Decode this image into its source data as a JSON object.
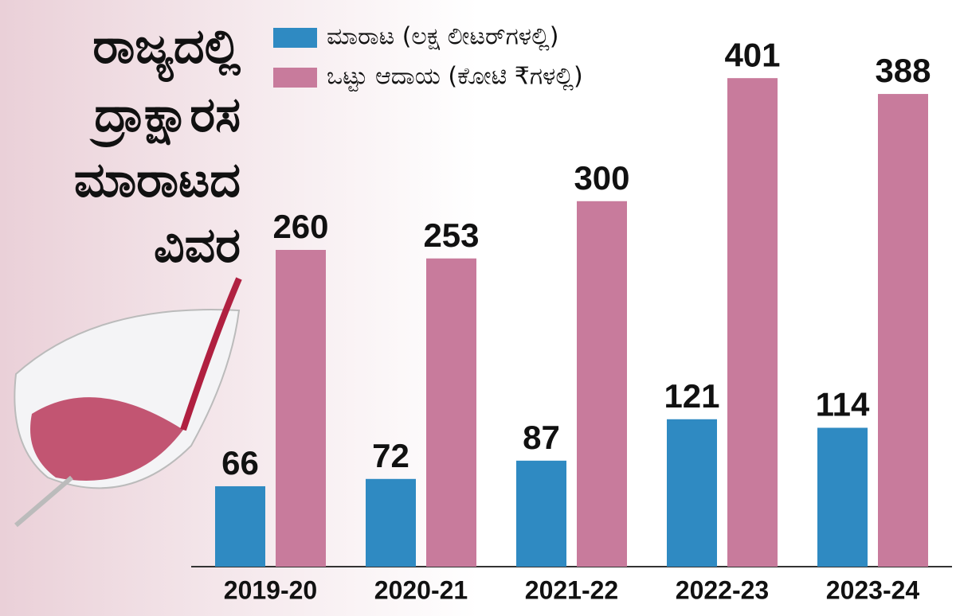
{
  "chart_data": {
    "type": "bar",
    "title": [
      "ರಾಜ್ಯದಲ್ಲಿ",
      "ದ್ರಾಕ್ಷಾರಸ",
      "ಮಾರಾಟದ",
      "ವಿವರ"
    ],
    "categories": [
      "2019-20",
      "2020-21",
      "2021-22",
      "2022-23",
      "2023-24"
    ],
    "series": [
      {
        "name": "ಮಾರಾಟ (ಲಕ್ಷ ಲೀಟರ್‌ಗಳಲ್ಲಿ)",
        "color": "#2f8ac2",
        "values": [
          66,
          72,
          87,
          121,
          114
        ]
      },
      {
        "name": "ಒಟ್ಟು ಆದಾಯ (ಕೋಟಿ ₹ಗಳಲ್ಲಿ)",
        "color": "#c87b9c",
        "values": [
          260,
          253,
          300,
          401,
          388
        ]
      }
    ],
    "ylim": [
      0,
      439
    ]
  }
}
